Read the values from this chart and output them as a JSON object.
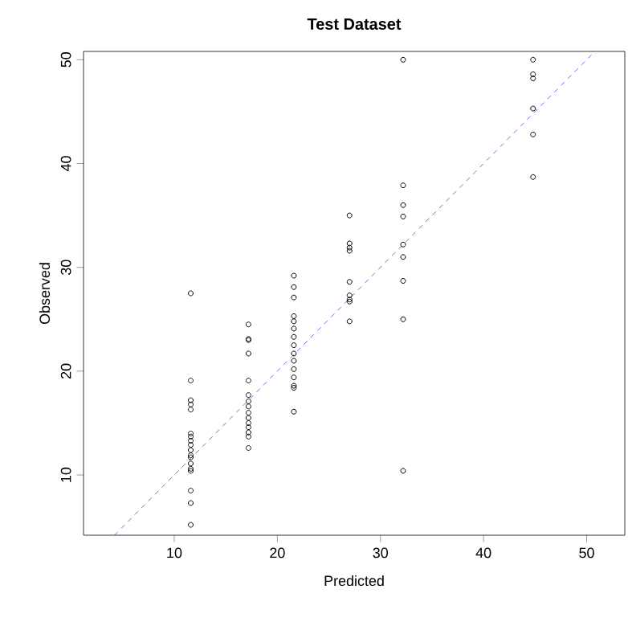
{
  "chart_data": {
    "type": "scatter",
    "title": "Test Dataset",
    "xlabel": "Predicted",
    "ylabel": "Observed",
    "xlim": [
      1.2,
      53.7
    ],
    "ylim": [
      4.2,
      50.8
    ],
    "xticks": [
      10,
      20,
      30,
      40,
      50
    ],
    "yticks": [
      10,
      20,
      30,
      40,
      50
    ],
    "grid": false,
    "series": [
      {
        "type": "scatter",
        "color": "#000000",
        "marker": "circle",
        "x": [
          11.6,
          11.6,
          11.6,
          11.6,
          11.6,
          11.6,
          11.6,
          11.6,
          11.6,
          11.6,
          11.6,
          11.6,
          11.6,
          11.6,
          11.6,
          11.6,
          11.6,
          11.6,
          17.2,
          17.2,
          17.2,
          17.2,
          17.2,
          17.2,
          17.2,
          17.2,
          17.2,
          17.2,
          17.2,
          17.2,
          17.2,
          17.2,
          17.2,
          21.6,
          21.6,
          21.6,
          21.6,
          21.6,
          21.6,
          21.6,
          21.6,
          21.6,
          21.6,
          21.6,
          21.6,
          21.6,
          21.6,
          21.6,
          27.0,
          27.0,
          27.0,
          27.0,
          27.0,
          27.0,
          27.0,
          27.0,
          27.0,
          32.2,
          32.2,
          32.2,
          32.2,
          32.2,
          32.2,
          32.2,
          32.2,
          32.2,
          44.8,
          44.8,
          44.8,
          44.8,
          44.8,
          44.8
        ],
        "values": [
          27.5,
          19.1,
          17.2,
          16.8,
          16.3,
          14.0,
          13.7,
          13.3,
          12.9,
          12.4,
          11.9,
          11.7,
          11.1,
          10.6,
          10.4,
          8.5,
          7.3,
          5.2,
          24.5,
          23.1,
          23.0,
          21.7,
          19.1,
          17.7,
          17.1,
          16.6,
          16.0,
          15.5,
          15.0,
          14.6,
          14.1,
          13.7,
          12.6,
          29.2,
          28.1,
          27.1,
          25.3,
          24.8,
          24.1,
          23.3,
          22.5,
          21.7,
          21.0,
          20.2,
          19.4,
          18.6,
          18.4,
          16.1,
          35.0,
          32.3,
          31.9,
          31.6,
          28.6,
          27.3,
          26.9,
          26.7,
          24.8,
          50.0,
          37.9,
          36.0,
          34.9,
          32.2,
          31.0,
          28.7,
          25.0,
          10.4,
          50.0,
          48.6,
          48.2,
          45.3,
          42.8,
          38.7
        ]
      },
      {
        "type": "line",
        "color": "#4a4ad8",
        "marker": "none",
        "line_style": "dashed",
        "x": [
          4.2,
          50.8
        ],
        "values": [
          4.2,
          50.8
        ]
      }
    ]
  }
}
